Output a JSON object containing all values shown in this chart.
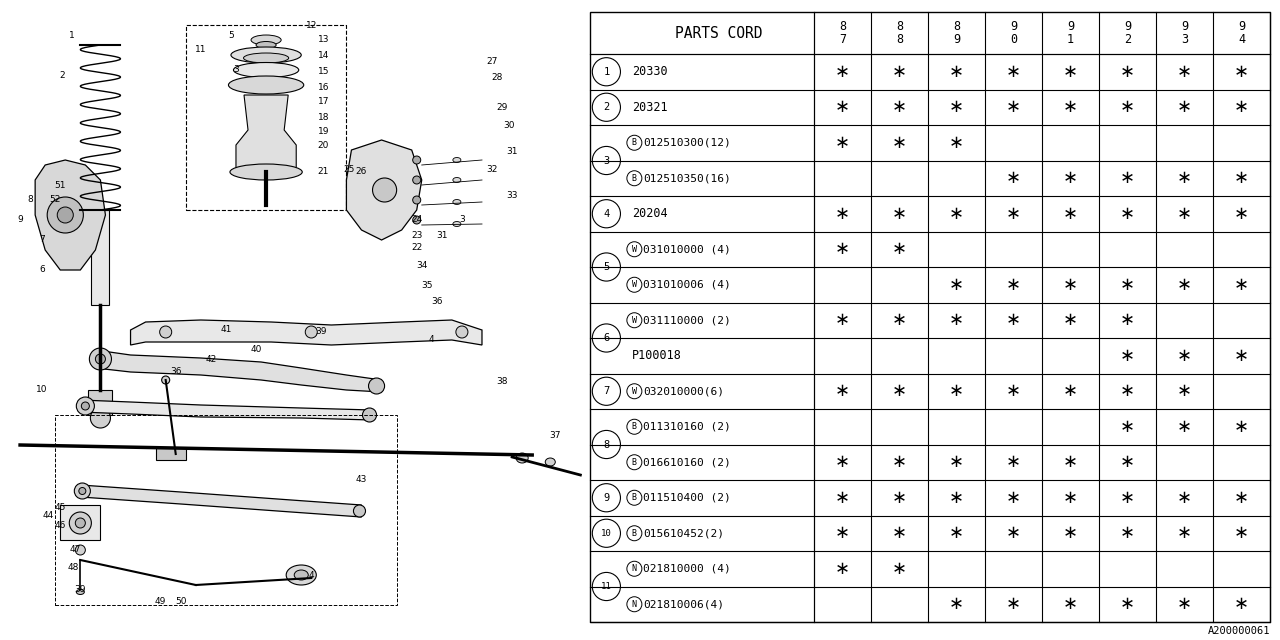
{
  "diagram_label": "A200000061",
  "rows": [
    {
      "num": "1",
      "prefix": "",
      "part": "20330",
      "stars": [
        1,
        1,
        1,
        1,
        1,
        1,
        1,
        1
      ]
    },
    {
      "num": "2",
      "prefix": "",
      "part": "20321",
      "stars": [
        1,
        1,
        1,
        1,
        1,
        1,
        1,
        1
      ]
    },
    {
      "num": "3",
      "prefix": "B",
      "part": "012510300(12)",
      "stars": [
        1,
        1,
        1,
        0,
        0,
        0,
        0,
        0
      ]
    },
    {
      "num": "3",
      "prefix": "B",
      "part": "012510350(16)",
      "stars": [
        0,
        0,
        0,
        1,
        1,
        1,
        1,
        1
      ]
    },
    {
      "num": "4",
      "prefix": "",
      "part": "20204",
      "stars": [
        1,
        1,
        1,
        1,
        1,
        1,
        1,
        1
      ]
    },
    {
      "num": "5",
      "prefix": "W",
      "part": "031010000 (4)",
      "stars": [
        1,
        1,
        0,
        0,
        0,
        0,
        0,
        0
      ]
    },
    {
      "num": "5",
      "prefix": "W",
      "part": "031010006 (4)",
      "stars": [
        0,
        0,
        1,
        1,
        1,
        1,
        1,
        1
      ]
    },
    {
      "num": "6",
      "prefix": "W",
      "part": "031110000 (2)",
      "stars": [
        1,
        1,
        1,
        1,
        1,
        1,
        0,
        0
      ]
    },
    {
      "num": "6",
      "prefix": "",
      "part": "P100018",
      "stars": [
        0,
        0,
        0,
        0,
        0,
        1,
        1,
        1
      ]
    },
    {
      "num": "7",
      "prefix": "W",
      "part": "032010000(6)",
      "stars": [
        1,
        1,
        1,
        1,
        1,
        1,
        1,
        0
      ]
    },
    {
      "num": "8",
      "prefix": "B",
      "part": "011310160 (2)",
      "stars": [
        0,
        0,
        0,
        0,
        0,
        1,
        1,
        1
      ]
    },
    {
      "num": "8",
      "prefix": "B",
      "part": "016610160 (2)",
      "stars": [
        1,
        1,
        1,
        1,
        1,
        1,
        0,
        0
      ]
    },
    {
      "num": "9",
      "prefix": "B",
      "part": "011510400 (2)",
      "stars": [
        1,
        1,
        1,
        1,
        1,
        1,
        1,
        1
      ]
    },
    {
      "num": "10",
      "prefix": "B",
      "part": "015610452(2)",
      "stars": [
        1,
        1,
        1,
        1,
        1,
        1,
        1,
        1
      ]
    },
    {
      "num": "11",
      "prefix": "N",
      "part": "021810000 (4)",
      "stars": [
        1,
        1,
        0,
        0,
        0,
        0,
        0,
        0
      ]
    },
    {
      "num": "11",
      "prefix": "N",
      "part": "021810006(4)",
      "stars": [
        0,
        0,
        1,
        1,
        1,
        1,
        1,
        1
      ]
    }
  ],
  "year_cols": [
    "8\n7",
    "8\n8",
    "8\n9",
    "9\n0",
    "9\n1",
    "9\n2",
    "9\n3",
    "9\n4"
  ],
  "bg_color": "#ffffff"
}
